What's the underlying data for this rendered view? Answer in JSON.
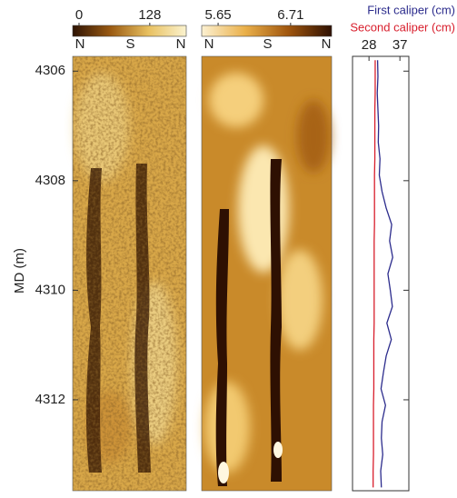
{
  "chart_data": {
    "type": "line",
    "y_label": "MD (m)",
    "ylim": [
      4305.73,
      4313.66
    ],
    "y_inverted": true,
    "yticks": [
      4306,
      4308,
      4310,
      4312
    ],
    "image_panels": [
      {
        "colorbar_lim": [
          -11.5,
          194
        ],
        "colorbar_ticks": [
          0,
          128
        ],
        "colorbar_colors": [
          "#2e1304",
          "#9a5a12",
          "#e8c060",
          "#fbf3cf"
        ],
        "azimuth_labels": [
          "N",
          "S",
          "N"
        ]
      },
      {
        "colorbar_lim": [
          5.41,
          7.31
        ],
        "colorbar_ticks": [
          5.65,
          6.71
        ],
        "colorbar_colors": [
          "#fcf1d2",
          "#eab04a",
          "#a0560e",
          "#2e1002"
        ],
        "azimuth_labels": [
          "N",
          "S",
          "N"
        ]
      }
    ],
    "caliper": {
      "xlim": [
        23.2,
        39.6
      ],
      "xticks": [
        28,
        37
      ],
      "depth": [
        4305.8,
        4306.1,
        4306.4,
        4306.7,
        4307.0,
        4307.3,
        4307.6,
        4307.9,
        4308.2,
        4308.5,
        4308.8,
        4309.1,
        4309.4,
        4309.7,
        4310.0,
        4310.3,
        4310.6,
        4310.9,
        4311.2,
        4311.5,
        4311.8,
        4312.1,
        4312.4,
        4312.7,
        4313.0,
        4313.3,
        4313.6
      ],
      "series": [
        {
          "name": "First caliper (cm)",
          "color": "#2b2b8c",
          "values": [
            30.5,
            30.6,
            30.4,
            30.6,
            30.8,
            30.7,
            31.2,
            31.0,
            31.8,
            33.0,
            34.6,
            34.0,
            34.9,
            33.5,
            34.2,
            34.8,
            33.2,
            34.5,
            33.0,
            32.2,
            31.5,
            32.8,
            31.8,
            31.6,
            32.0,
            31.4,
            31.6
          ]
        },
        {
          "name": "Second caliper (cm)",
          "color": "#d81e2c",
          "values": [
            29.8,
            29.8,
            29.8,
            29.7,
            29.7,
            29.7,
            29.7,
            29.6,
            29.6,
            29.6,
            29.6,
            29.5,
            29.5,
            29.5,
            29.5,
            29.5,
            29.5,
            29.4,
            29.4,
            29.4,
            29.4,
            29.3,
            29.3,
            29.3,
            29.3,
            29.2,
            29.2
          ]
        }
      ]
    }
  }
}
